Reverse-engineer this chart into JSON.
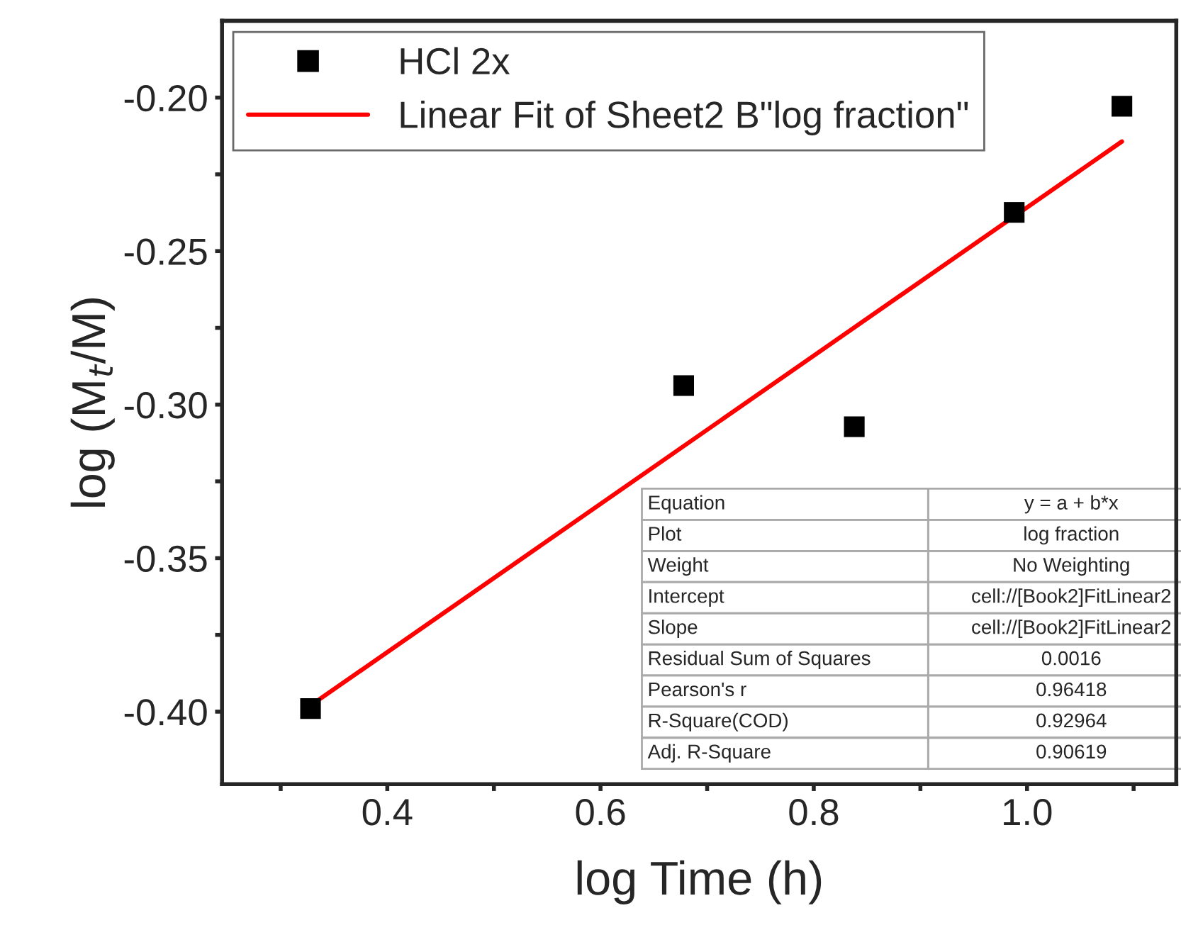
{
  "chart_data": {
    "type": "scatter",
    "xlabel": "log Time (h)",
    "ylabel": "log (M$_{t}$/M)",
    "xlim": [
      0.245,
      1.14
    ],
    "ylim": [
      -0.4236,
      -0.175
    ],
    "xticks": [
      {
        "value": 0.3,
        "label": null
      },
      0.4,
      {
        "value": 0.5,
        "label": null
      },
      0.6,
      {
        "value": 0.7,
        "label": null
      },
      0.8,
      {
        "value": 0.9,
        "label": null
      },
      {
        "value": 1.0,
        "label": "1.0"
      },
      {
        "value": 1.1,
        "label": null
      }
    ],
    "yticks": [
      {
        "value": -0.4,
        "label": "-0.40"
      },
      {
        "value": -0.375,
        "label": null
      },
      -0.35,
      {
        "value": -0.325,
        "label": null
      },
      {
        "value": -0.3,
        "label": "-0.30"
      },
      {
        "value": -0.275,
        "label": null
      },
      -0.25,
      {
        "value": -0.225,
        "label": null
      },
      {
        "value": -0.2,
        "label": "-0.20"
      }
    ],
    "series": [
      {
        "name": "HCl 2x",
        "color": "#000000",
        "marker": "square",
        "x": [
          0.328,
          0.678,
          0.838,
          0.988,
          1.089
        ],
        "values": [
          -0.399,
          -0.2938,
          -0.3072,
          -0.2374,
          -0.2028
        ]
      },
      {
        "name": "Linear Fit of Sheet2 B\"log fraction\"",
        "type": "line",
        "color": "#ff0000",
        "line_style": "solid",
        "x": [
          0.328,
          1.089
        ],
        "values": [
          -0.398,
          -0.2143
        ]
      }
    ],
    "legend": "top left",
    "grid": false,
    "annotations": [
      "Equation",
      "y = a + b*x",
      "Plot",
      "log fraction",
      "Weight",
      "No Weighting",
      "Intercept",
      "cell://[Book2]FitLinear2",
      "Slope",
      "cell://[Book2]FitLinear2",
      "Residual Sum of Squares",
      "0.0016",
      "Pearson's r",
      "0.96418",
      "R-Square(COD)",
      "0.92964",
      "Adj. R-Square",
      "0.90619"
    ]
  }
}
